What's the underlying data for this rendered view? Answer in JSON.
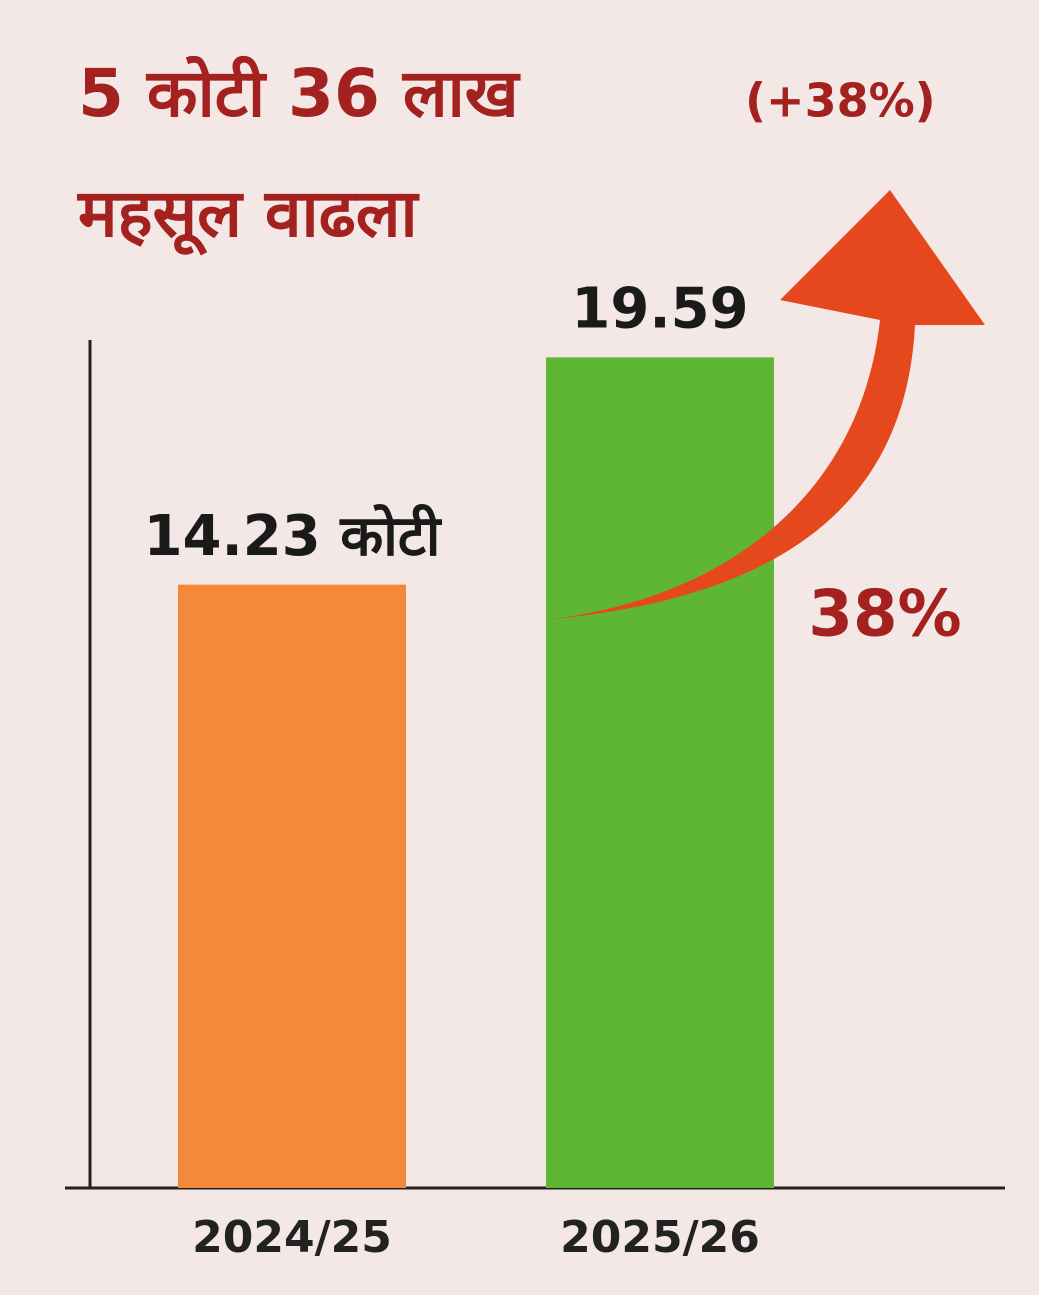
{
  "chart_data": {
    "type": "bar",
    "title": "5 कोटी 36 लाख",
    "title_note": "(+38%)",
    "subtitle": "महसूल वाढला",
    "annotation": "38%",
    "categories": [
      "2024/25",
      "2025/26"
    ],
    "values": [
      14.23,
      19.59
    ],
    "value_labels": [
      "14.23 कोटी",
      "19.59"
    ],
    "colors": [
      "#f5893a",
      "#5fb635"
    ],
    "ylim": [
      0,
      20
    ]
  }
}
